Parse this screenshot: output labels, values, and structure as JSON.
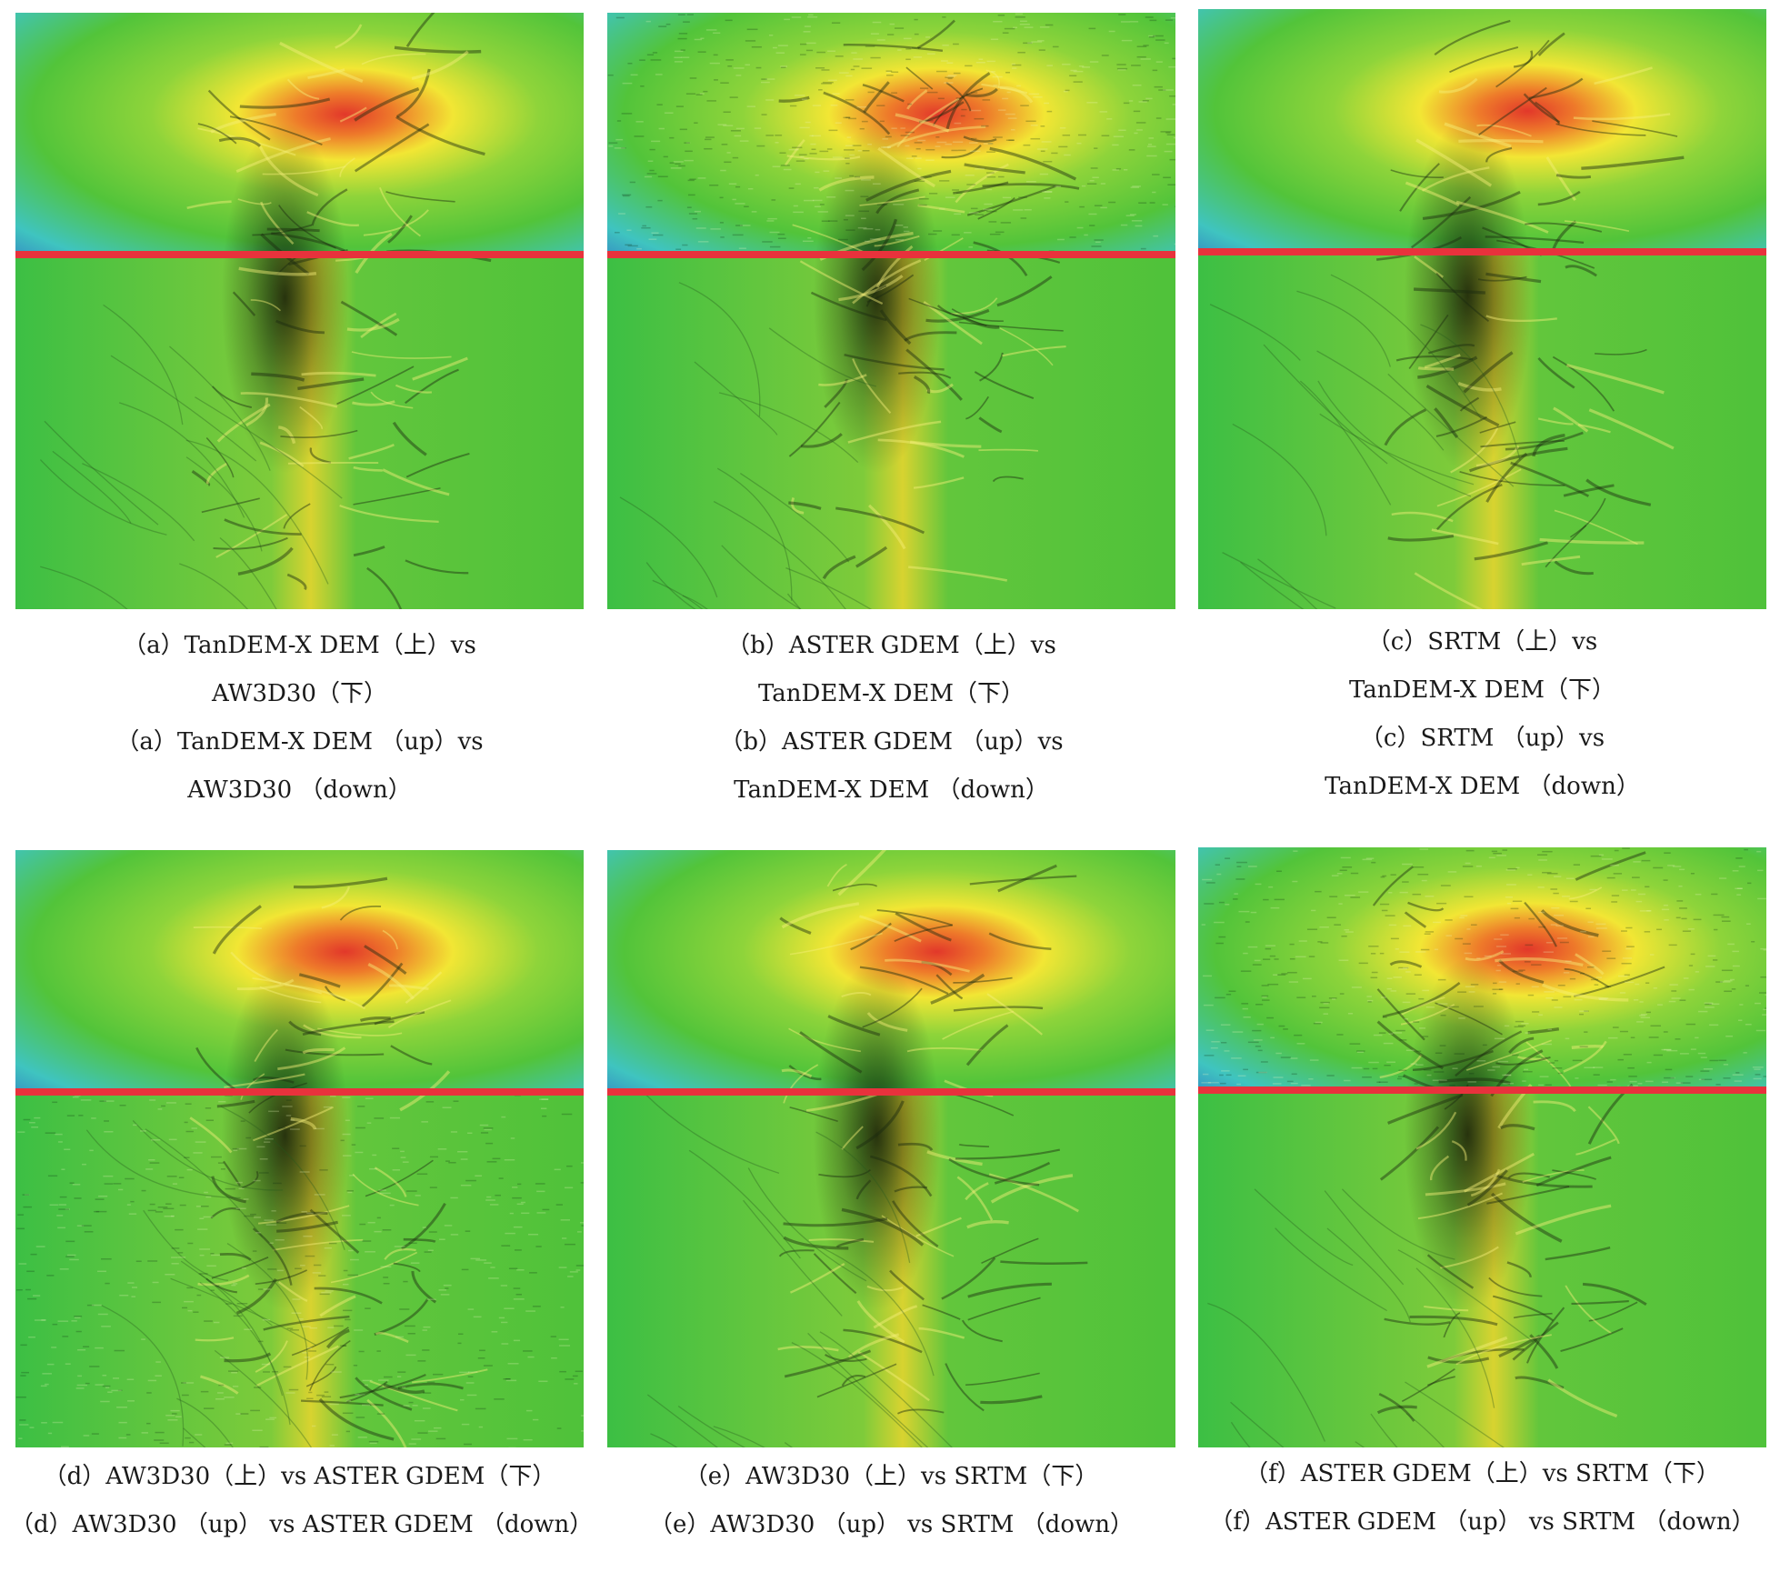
{
  "figure": {
    "panels": [
      {
        "id": "a",
        "caption_lines": [
          "（a）TanDEM-X DEM（上）vs",
          "AW3D30（下）",
          "（a）TanDEM-X DEM （up）vs",
          "AW3D30 （down）"
        ],
        "top_texture": "smooth",
        "bottom_texture": "smooth"
      },
      {
        "id": "b",
        "caption_lines": [
          "（b）ASTER GDEM（上）vs",
          "TanDEM-X DEM（下）",
          "（b）ASTER GDEM （up）vs",
          "TanDEM-X DEM （down）"
        ],
        "top_texture": "noisy",
        "bottom_texture": "smooth"
      },
      {
        "id": "c",
        "caption_lines": [
          "（c）SRTM（上）vs",
          "TanDEM-X DEM（下）",
          "（c）SRTM （up）vs",
          "TanDEM-X DEM （down）"
        ],
        "top_texture": "smooth",
        "bottom_texture": "smooth"
      },
      {
        "id": "d",
        "caption_lines": [
          "（d）AW3D30（上）vs ASTER GDEM（下）",
          "（d）AW3D30 （up） vs ASTER GDEM （down）"
        ],
        "top_texture": "smooth",
        "bottom_texture": "noisy"
      },
      {
        "id": "e",
        "caption_lines": [
          "（e）AW3D30（上）vs SRTM（下）",
          "（e）AW3D30 （up） vs SRTM （down）"
        ],
        "top_texture": "smooth",
        "bottom_texture": "smooth"
      },
      {
        "id": "f",
        "caption_lines": [
          "（f）ASTER GDEM（上）vs SRTM（下）",
          "（f）ASTER GDEM （up） vs SRTM （down）"
        ],
        "top_texture": "noisy",
        "bottom_texture": "smooth"
      }
    ],
    "colors": {
      "divider": "#e8323c",
      "low": "#2a4fc4",
      "mid_low": "#3fc4c0",
      "mid": "#52c43a",
      "high_yellow": "#f2e634",
      "peak": "#e2382a"
    }
  }
}
